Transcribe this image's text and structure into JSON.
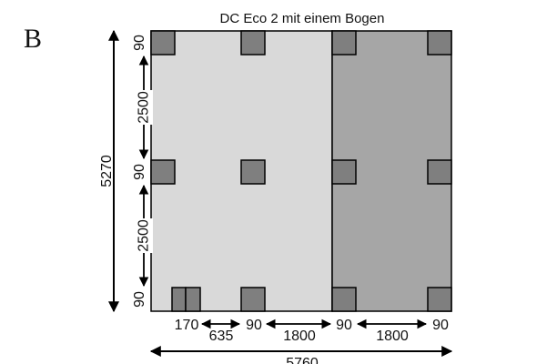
{
  "figure": {
    "panel_letter": "B",
    "title": "DC Eco 2 mit einem Bogen",
    "colors": {
      "outline": "#000000",
      "light_area": "#d9d9d9",
      "dark_area": "#a6a6a6",
      "post": "#7f7f7f"
    }
  },
  "dims": {
    "total_height": "5270",
    "total_width": "5760",
    "left": {
      "top_post": "90",
      "upper_span": "2500",
      "mid_post": "90",
      "lower_span": "2500",
      "bottom_post": "90"
    },
    "bottom": {
      "first_offset": "170",
      "gap_a": "635",
      "post_a": "90",
      "span_a": "1800",
      "post_b": "90",
      "span_b": "1800",
      "post_c": "90"
    }
  }
}
